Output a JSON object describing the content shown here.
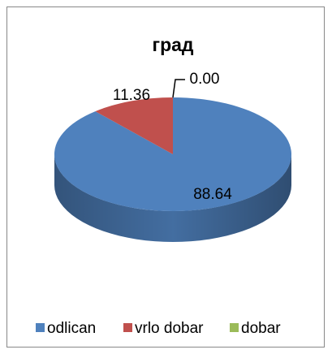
{
  "chart_data": {
    "type": "pie3d",
    "title": "град",
    "categories": [
      "odlican",
      "vrlo dobar",
      "dobar"
    ],
    "values": [
      88.64,
      11.36,
      0
    ],
    "value_labels": [
      "88.64",
      "11.36",
      "0.00"
    ],
    "colors": [
      "#4f81bd",
      "#c0504d",
      "#9bbb59"
    ],
    "legend": "bottom"
  }
}
